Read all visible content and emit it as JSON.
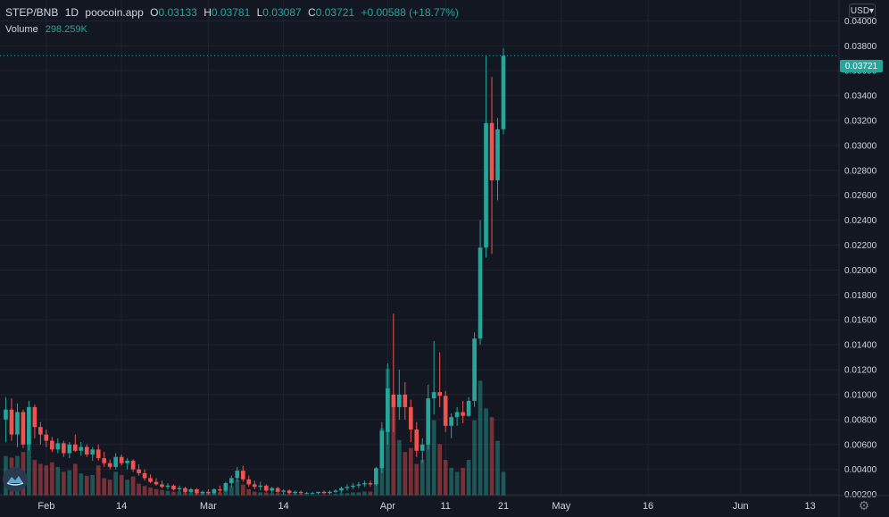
{
  "header": {
    "symbol": "STEP/BNB",
    "interval": "1D",
    "source": "poocoin.app",
    "ohlc": [
      {
        "key": "O",
        "value": "0.03133"
      },
      {
        "key": "H",
        "value": "0.03781"
      },
      {
        "key": "L",
        "value": "0.03087"
      },
      {
        "key": "C",
        "value": "0.03721"
      }
    ],
    "change": "+0.00588 (+18.77%)",
    "volume_label": "Volume",
    "volume_value": "298.259K"
  },
  "controls": {
    "currency": "USD",
    "settings_icon": "gear-icon"
  },
  "colors": {
    "background": "#131722",
    "up": "#26a69a",
    "down": "#ef5350",
    "grid": "#1f2430",
    "text": "#d1d4dc"
  },
  "chart_data": {
    "type": "candlestick",
    "last_price": "0.03721",
    "y_ticks": [
      "0.04000",
      "0.03800",
      "0.03600",
      "0.03400",
      "0.03200",
      "0.03000",
      "0.02800",
      "0.02600",
      "0.02400",
      "0.02200",
      "0.02000",
      "0.01800",
      "0.01600",
      "0.01400",
      "0.01200",
      "0.01000",
      "0.00800",
      "0.00600",
      "0.00400",
      "0.00200"
    ],
    "ylim": [
      0.0019,
      0.0411
    ],
    "x_ticks": [
      {
        "label": "Feb",
        "day": 7
      },
      {
        "label": "14",
        "day": 20
      },
      {
        "label": "Mar",
        "day": 35
      },
      {
        "label": "14",
        "day": 48
      },
      {
        "label": "Apr",
        "day": 66
      },
      {
        "label": "11",
        "day": 76
      },
      {
        "label": "21",
        "day": 86
      },
      {
        "label": "May",
        "day": 96
      },
      {
        "label": "16",
        "day": 111
      },
      {
        "label": "Jun",
        "day": 127
      },
      {
        "label": "13",
        "day": 139
      }
    ],
    "xlim": [
      -1,
      144
    ],
    "candles": [
      [
        0,
        0.008,
        0.0098,
        0.0062,
        0.0088,
        50
      ],
      [
        1,
        0.0088,
        0.0097,
        0.0063,
        0.0068,
        48
      ],
      [
        2,
        0.0068,
        0.0093,
        0.0058,
        0.0086,
        50
      ],
      [
        3,
        0.0086,
        0.0088,
        0.0057,
        0.006,
        55
      ],
      [
        4,
        0.006,
        0.0095,
        0.0055,
        0.009,
        80
      ],
      [
        5,
        0.009,
        0.0092,
        0.0065,
        0.0074,
        45
      ],
      [
        6,
        0.0074,
        0.0078,
        0.006,
        0.0068,
        40
      ],
      [
        7,
        0.0068,
        0.0072,
        0.0058,
        0.0063,
        38
      ],
      [
        8,
        0.0063,
        0.0066,
        0.0054,
        0.0056,
        42
      ],
      [
        9,
        0.0056,
        0.0065,
        0.0053,
        0.0061,
        36
      ],
      [
        10,
        0.0061,
        0.0063,
        0.005,
        0.0053,
        30
      ],
      [
        11,
        0.0053,
        0.0062,
        0.0049,
        0.006,
        32
      ],
      [
        12,
        0.006,
        0.0068,
        0.0054,
        0.0055,
        40
      ],
      [
        13,
        0.0055,
        0.0062,
        0.0051,
        0.0058,
        28
      ],
      [
        14,
        0.0058,
        0.006,
        0.005,
        0.0052,
        25
      ],
      [
        15,
        0.0052,
        0.0058,
        0.0047,
        0.0056,
        26
      ],
      [
        16,
        0.0056,
        0.006,
        0.0047,
        0.0049,
        38
      ],
      [
        17,
        0.0049,
        0.0054,
        0.0042,
        0.0045,
        22
      ],
      [
        18,
        0.0045,
        0.0048,
        0.004,
        0.0042,
        20
      ],
      [
        19,
        0.0042,
        0.0053,
        0.004,
        0.005,
        30
      ],
      [
        20,
        0.005,
        0.0052,
        0.0043,
        0.0045,
        26
      ],
      [
        21,
        0.0045,
        0.0049,
        0.004,
        0.0047,
        20
      ],
      [
        22,
        0.0047,
        0.0048,
        0.0038,
        0.004,
        24
      ],
      [
        23,
        0.004,
        0.0044,
        0.0035,
        0.0037,
        15
      ],
      [
        24,
        0.0037,
        0.004,
        0.0031,
        0.0033,
        12
      ],
      [
        25,
        0.0033,
        0.0036,
        0.0029,
        0.003,
        10
      ],
      [
        26,
        0.003,
        0.0033,
        0.0027,
        0.0028,
        8
      ],
      [
        27,
        0.0028,
        0.0031,
        0.0025,
        0.0026,
        7
      ],
      [
        28,
        0.0026,
        0.0029,
        0.0024,
        0.0027,
        6
      ],
      [
        29,
        0.0027,
        0.0028,
        0.0023,
        0.0024,
        5
      ],
      [
        30,
        0.0024,
        0.0027,
        0.0022,
        0.0025,
        5
      ],
      [
        31,
        0.0025,
        0.0026,
        0.0021,
        0.0022,
        4
      ],
      [
        32,
        0.0022,
        0.0025,
        0.0021,
        0.0024,
        4
      ],
      [
        33,
        0.0024,
        0.0025,
        0.002,
        0.0021,
        3
      ],
      [
        34,
        0.0021,
        0.0023,
        0.002,
        0.0022,
        3
      ],
      [
        35,
        0.0022,
        0.0024,
        0.002,
        0.0021,
        3
      ],
      [
        36,
        0.0021,
        0.0025,
        0.002,
        0.0024,
        5
      ],
      [
        37,
        0.0024,
        0.0027,
        0.0021,
        0.0023,
        4
      ],
      [
        38,
        0.0023,
        0.003,
        0.0022,
        0.0029,
        8
      ],
      [
        39,
        0.0029,
        0.0035,
        0.0026,
        0.0033,
        12
      ],
      [
        40,
        0.0033,
        0.0042,
        0.003,
        0.0039,
        20
      ],
      [
        41,
        0.0039,
        0.0043,
        0.003,
        0.0032,
        14
      ],
      [
        42,
        0.0032,
        0.0035,
        0.0026,
        0.0028,
        8
      ],
      [
        43,
        0.0028,
        0.0031,
        0.0024,
        0.0026,
        5
      ],
      [
        44,
        0.0026,
        0.003,
        0.0023,
        0.0027,
        4
      ],
      [
        45,
        0.0027,
        0.0028,
        0.0022,
        0.0023,
        4
      ],
      [
        46,
        0.0023,
        0.0026,
        0.0021,
        0.0025,
        3
      ],
      [
        47,
        0.0025,
        0.0026,
        0.0021,
        0.0022,
        3
      ],
      [
        48,
        0.0022,
        0.0024,
        0.002,
        0.0023,
        2
      ],
      [
        49,
        0.0023,
        0.0024,
        0.002,
        0.0021,
        2
      ],
      [
        50,
        0.0021,
        0.0023,
        0.002,
        0.0022,
        2
      ],
      [
        51,
        0.0022,
        0.0023,
        0.002,
        0.0021,
        2
      ],
      [
        52,
        0.0021,
        0.0022,
        0.002,
        0.0021,
        1
      ],
      [
        53,
        0.0021,
        0.0022,
        0.002,
        0.0021,
        1
      ],
      [
        54,
        0.0021,
        0.0022,
        0.002,
        0.0022,
        1
      ],
      [
        55,
        0.0022,
        0.0023,
        0.002,
        0.0021,
        1
      ],
      [
        56,
        0.0021,
        0.0023,
        0.002,
        0.0022,
        1
      ],
      [
        57,
        0.0022,
        0.0024,
        0.0021,
        0.0023,
        2
      ],
      [
        58,
        0.0023,
        0.0026,
        0.0021,
        0.0025,
        3
      ],
      [
        59,
        0.0025,
        0.0028,
        0.0023,
        0.0026,
        3
      ],
      [
        60,
        0.0026,
        0.0029,
        0.0024,
        0.0027,
        4
      ],
      [
        61,
        0.0027,
        0.003,
        0.0025,
        0.0028,
        4
      ],
      [
        62,
        0.0028,
        0.0031,
        0.0026,
        0.0029,
        5
      ],
      [
        63,
        0.0029,
        0.0031,
        0.0026,
        0.0028,
        5
      ],
      [
        64,
        0.0028,
        0.0042,
        0.0027,
        0.0041,
        20
      ],
      [
        65,
        0.0041,
        0.0078,
        0.0037,
        0.0071,
        85
      ],
      [
        66,
        0.007,
        0.0125,
        0.006,
        0.0105,
        160
      ],
      [
        67,
        0.01,
        0.0165,
        0.007,
        0.009,
        120
      ],
      [
        68,
        0.009,
        0.012,
        0.008,
        0.01,
        70
      ],
      [
        69,
        0.01,
        0.011,
        0.008,
        0.009,
        55
      ],
      [
        70,
        0.009,
        0.0096,
        0.0062,
        0.0072,
        60
      ],
      [
        71,
        0.0072,
        0.0078,
        0.005,
        0.0055,
        40
      ],
      [
        72,
        0.0055,
        0.0065,
        0.0045,
        0.006,
        45
      ],
      [
        73,
        0.006,
        0.0108,
        0.0056,
        0.0097,
        85
      ],
      [
        74,
        0.0097,
        0.0143,
        0.0084,
        0.0102,
        95
      ],
      [
        75,
        0.0102,
        0.0134,
        0.009,
        0.0099,
        65
      ],
      [
        76,
        0.0099,
        0.0103,
        0.007,
        0.0075,
        45
      ],
      [
        77,
        0.0075,
        0.0085,
        0.0065,
        0.0082,
        35
      ],
      [
        78,
        0.0082,
        0.009,
        0.0075,
        0.0086,
        30
      ],
      [
        79,
        0.0086,
        0.0095,
        0.0077,
        0.0083,
        35
      ],
      [
        80,
        0.0083,
        0.0098,
        0.0082,
        0.0095,
        45
      ],
      [
        81,
        0.0095,
        0.015,
        0.009,
        0.0145,
        95
      ],
      [
        82,
        0.0145,
        0.024,
        0.014,
        0.0218,
        145
      ],
      [
        83,
        0.0218,
        0.0372,
        0.021,
        0.0318,
        110
      ],
      [
        84,
        0.0318,
        0.0355,
        0.0213,
        0.0272,
        99
      ],
      [
        85,
        0.0272,
        0.0322,
        0.0256,
        0.0313,
        69
      ],
      [
        86,
        0.0313,
        0.0378,
        0.0309,
        0.0372,
        30
      ]
    ],
    "volume_max": 160
  }
}
